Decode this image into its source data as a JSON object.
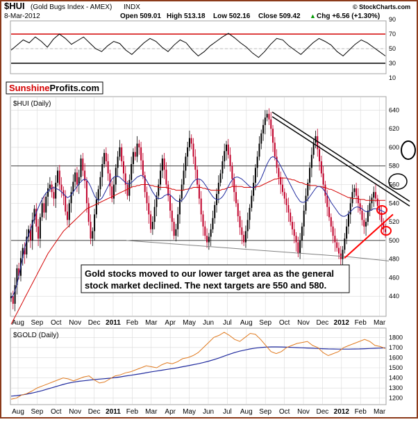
{
  "header": {
    "symbol": "$HUI",
    "name": "(Gold Bugs Index - AMEX)",
    "exchange": "INDX",
    "date": "8-Mar-2012",
    "open": "Open 509.01",
    "high": "High 513.18",
    "low": "Low 502.16",
    "close": "Close 509.42",
    "change": "Chg +6.56 (+1.30%)",
    "change_arrow": "▲",
    "copyright": "© StockCharts.com"
  },
  "logo": {
    "part1": "Sunshine",
    "part2": "Profits.com"
  },
  "annotation": {
    "line1": "Gold stocks moved to our lower target area as the general",
    "line2": "stock market declined. The next targets are 550 and 580."
  },
  "colors": {
    "background": "#ffffff",
    "frame": "#8b3a1a",
    "panel_border": "#a0a0a0",
    "grid": "#d9d9d9",
    "price_up": "#000000",
    "price_down": "#c0002a",
    "ma_short": "#1f2a9e",
    "ma_long": "#d40000",
    "gold_line": "#e07a1f",
    "gold_ma": "#1f2a9e",
    "logo_red": "#d40000",
    "trend_red": "#ff0000",
    "trend_black": "#000000",
    "trend_gray": "#808080"
  },
  "chart_data": [
    {
      "type": "line",
      "panel": "rsi",
      "title": "",
      "ylim": [
        10,
        90
      ],
      "y_ticks": [
        10,
        30,
        50,
        70,
        90
      ],
      "reference_lines": [
        70,
        30
      ],
      "series": [
        {
          "values": [
            48,
            55,
            62,
            58,
            66,
            60,
            52,
            63,
            70,
            64,
            56,
            61,
            66,
            58,
            50,
            46,
            54,
            60,
            57,
            48,
            42,
            50,
            58,
            64,
            60,
            52,
            46,
            55,
            62,
            58,
            48,
            40,
            46,
            54,
            60,
            66,
            71,
            65,
            58,
            52,
            44,
            38,
            46,
            56,
            64,
            62,
            54,
            48,
            42,
            50,
            58,
            64,
            60,
            55,
            46,
            40,
            48,
            56,
            62,
            58,
            52,
            46,
            40
          ]
        }
      ]
    },
    {
      "type": "candlestick",
      "panel": "hui",
      "title": "$HUI (Daily)",
      "ylim": [
        420,
        650
      ],
      "y_ticks": [
        440,
        460,
        480,
        500,
        520,
        540,
        560,
        580,
        600,
        620,
        640
      ],
      "x_tick_labels": [
        "Aug",
        "Sep",
        "Oct",
        "Nov",
        "Dec",
        "2011",
        "Feb",
        "Mar",
        "Apr",
        "May",
        "Jun",
        "Jul",
        "Aug",
        "Sep",
        "Oct",
        "Nov",
        "Dec",
        "2012",
        "Feb",
        "Mar"
      ],
      "grid": true,
      "horizontal_lines": [
        580,
        500
      ],
      "series": [
        {
          "role": "price",
          "values": [
            440,
            432,
            452,
            470,
            462,
            481,
            492,
            485,
            504,
            512,
            500,
            522,
            534,
            515,
            502,
            525,
            540,
            530,
            547,
            556,
            560,
            552,
            545,
            562,
            575,
            560,
            554,
            548,
            531,
            522,
            540,
            552,
            563,
            573,
            560,
            568,
            588,
            575,
            564,
            540,
            520,
            502,
            510,
            528,
            544,
            555,
            568,
            582,
            594,
            585,
            572,
            558,
            545,
            560,
            578,
            590,
            600,
            585,
            572,
            560,
            548,
            565,
            582,
            595,
            590,
            604,
            600,
            586,
            570,
            552,
            540,
            528,
            512,
            520,
            536,
            548,
            560,
            575,
            588,
            576,
            560,
            548,
            532,
            520,
            505,
            512,
            528,
            545,
            560,
            575,
            590,
            600,
            610,
            604,
            590,
            576,
            560,
            545,
            528,
            515,
            505,
            498,
            504,
            512,
            524,
            538,
            550,
            562,
            572,
            585,
            596,
            603,
            592,
            580,
            566,
            552,
            540,
            526,
            514,
            506,
            498,
            510,
            522,
            535,
            548,
            562,
            578,
            590,
            604,
            615,
            624,
            632,
            636,
            630,
            620,
            605,
            590,
            578,
            568,
            560,
            552,
            545,
            538,
            530,
            520,
            512,
            505,
            498,
            486,
            500,
            515,
            532,
            548,
            562,
            578,
            592,
            605,
            612,
            598,
            585,
            572,
            560,
            548,
            536,
            525,
            515,
            505,
            498,
            492,
            486,
            480,
            490,
            502,
            515,
            528,
            540,
            552,
            556,
            548,
            540,
            532,
            522,
            515,
            520,
            532,
            540,
            546,
            552,
            545,
            537,
            530,
            520,
            512,
            509
          ]
        },
        {
          "role": "ma_short",
          "values": [
            438,
            441,
            446,
            453,
            462,
            472,
            482,
            492,
            500,
            506,
            512,
            518,
            524,
            530,
            535,
            540,
            544,
            548,
            551,
            553,
            555,
            556,
            557,
            556,
            555,
            554,
            552,
            550,
            548,
            546,
            547,
            549,
            552,
            555,
            558,
            561,
            563,
            565,
            566,
            565,
            562,
            558,
            553,
            548,
            545,
            543,
            544,
            546,
            550,
            554,
            558,
            562,
            566,
            568,
            569,
            569,
            568,
            566,
            564,
            562,
            561,
            561,
            562,
            564,
            566,
            568,
            569,
            570,
            569,
            567,
            564,
            560,
            556,
            552,
            549,
            546,
            545,
            545,
            546,
            548,
            549,
            550,
            549,
            547,
            545,
            543,
            542,
            542,
            543,
            545,
            548,
            552,
            556,
            560,
            563,
            565,
            566,
            566,
            565,
            563,
            560,
            557,
            553,
            550,
            547,
            545,
            544,
            544,
            545,
            547,
            550,
            554,
            558,
            562,
            565,
            567,
            568,
            568,
            567,
            566,
            564,
            562,
            560,
            558,
            557,
            557,
            558,
            560,
            563,
            567,
            572,
            577,
            582,
            586,
            589,
            590,
            589,
            587,
            584,
            580,
            576,
            572,
            568,
            564,
            560,
            556,
            552,
            548,
            545,
            542,
            541,
            541,
            542,
            544,
            547,
            550,
            553,
            556,
            558,
            558,
            557,
            555,
            552,
            549,
            545,
            541,
            538,
            535,
            532,
            529,
            527,
            526,
            526,
            527,
            529,
            531,
            533,
            535,
            536,
            536,
            535,
            534,
            532,
            531,
            531,
            532,
            533,
            534,
            534,
            534,
            533,
            532,
            531,
            530
          ]
        },
        {
          "role": "ma_long",
          "values": [
            410,
            414,
            418,
            422,
            426,
            430,
            434,
            438,
            442,
            446,
            450,
            454,
            458,
            462,
            466,
            470,
            474,
            478,
            482,
            486,
            489,
            492,
            495,
            498,
            501,
            504,
            507,
            510,
            512,
            514,
            516,
            518,
            520,
            522,
            524,
            526,
            528,
            530,
            532,
            534,
            535,
            536,
            537,
            538,
            539,
            540,
            541,
            542,
            543,
            544,
            545,
            546,
            547,
            548,
            549,
            550,
            551,
            552,
            553,
            554,
            555,
            556,
            557,
            558,
            558,
            559,
            559,
            560,
            560,
            560,
            560,
            560,
            559,
            559,
            558,
            558,
            557,
            557,
            557,
            557,
            557,
            556,
            556,
            555,
            555,
            554,
            554,
            554,
            554,
            554,
            555,
            555,
            556,
            556,
            557,
            557,
            557,
            557,
            557,
            556,
            556,
            555,
            555,
            554,
            554,
            554,
            554,
            554,
            554,
            555,
            555,
            556,
            557,
            557,
            558,
            558,
            558,
            558,
            558,
            558,
            557,
            557,
            557,
            557,
            557,
            557,
            557,
            558,
            558,
            559,
            560,
            561,
            562,
            563,
            564,
            565,
            566,
            566,
            567,
            567,
            567,
            567,
            567,
            566,
            566,
            565,
            565,
            564,
            563,
            562,
            562,
            561,
            560,
            560,
            559,
            559,
            559,
            559,
            558,
            558,
            558,
            557,
            557,
            556,
            555,
            555,
            554,
            553,
            552,
            551,
            550,
            549,
            548,
            547,
            546,
            546,
            545,
            545,
            545,
            545,
            544,
            544,
            544,
            543,
            543,
            543,
            543,
            543,
            543,
            543,
            543,
            543,
            543,
            543
          ]
        }
      ],
      "trendlines": [
        {
          "color": "black",
          "from": [
            "Sep 2011",
            638
          ],
          "to": [
            "Mar 2012",
            542
          ]
        },
        {
          "color": "black",
          "from": [
            "Sep 2011",
            633
          ],
          "to": [
            "Mar 2012",
            537
          ]
        },
        {
          "color": "gray",
          "from": [
            "Jan 2011",
            500
          ],
          "to": [
            "Jan 2012",
            483
          ]
        },
        {
          "color": "gray",
          "from": [
            "Jan 2012",
            483
          ],
          "to": [
            "Mar 2012",
            478
          ]
        },
        {
          "color": "red",
          "from": [
            "Jan 2012",
            481
          ],
          "to": [
            "Mar 2012",
            528
          ]
        }
      ]
    },
    {
      "type": "line",
      "panel": "gold",
      "title": "$GOLD (Daily)",
      "ylim": [
        1150,
        1850
      ],
      "y_ticks": [
        1200,
        1300,
        1400,
        1500,
        1600,
        1700,
        1800
      ],
      "x_tick_labels": [
        "Aug",
        "Sep",
        "Oct",
        "Nov",
        "Dec",
        "2011",
        "Feb",
        "Mar",
        "Apr",
        "May",
        "Jun",
        "Jul",
        "Aug",
        "Sep",
        "Oct",
        "Nov",
        "Dec",
        "2012",
        "Feb",
        "Mar"
      ],
      "series": [
        {
          "role": "price",
          "values": [
            1190,
            1200,
            1230,
            1245,
            1270,
            1300,
            1320,
            1340,
            1360,
            1380,
            1400,
            1390,
            1370,
            1390,
            1410,
            1420,
            1380,
            1350,
            1360,
            1390,
            1420,
            1430,
            1450,
            1460,
            1480,
            1500,
            1520,
            1510,
            1500,
            1530,
            1550,
            1540,
            1560,
            1590,
            1600,
            1620,
            1650,
            1700,
            1750,
            1800,
            1820,
            1850,
            1820,
            1780,
            1760,
            1800,
            1840,
            1830,
            1780,
            1720,
            1660,
            1640,
            1660,
            1700,
            1720,
            1740,
            1750,
            1760,
            1720,
            1700,
            1650,
            1620,
            1640,
            1660,
            1700,
            1720,
            1740,
            1760,
            1780,
            1760,
            1720,
            1710,
            1690
          ]
        },
        {
          "role": "moving_average",
          "values": [
            1220,
            1225,
            1232,
            1240,
            1250,
            1262,
            1275,
            1290,
            1305,
            1320,
            1335,
            1348,
            1358,
            1366,
            1372,
            1378,
            1383,
            1388,
            1392,
            1397,
            1403,
            1410,
            1418,
            1426,
            1434,
            1442,
            1451,
            1460,
            1468,
            1476,
            1484,
            1492,
            1500,
            1510,
            1520,
            1530,
            1540,
            1552,
            1565,
            1580,
            1597,
            1615,
            1633,
            1650,
            1664,
            1676,
            1686,
            1694,
            1700,
            1704,
            1706,
            1706,
            1705,
            1703,
            1701,
            1699,
            1697,
            1695,
            1693,
            1690,
            1688,
            1686,
            1685,
            1684,
            1684,
            1684,
            1685,
            1686,
            1688,
            1690,
            1692,
            1694,
            1696
          ]
        }
      ]
    }
  ]
}
